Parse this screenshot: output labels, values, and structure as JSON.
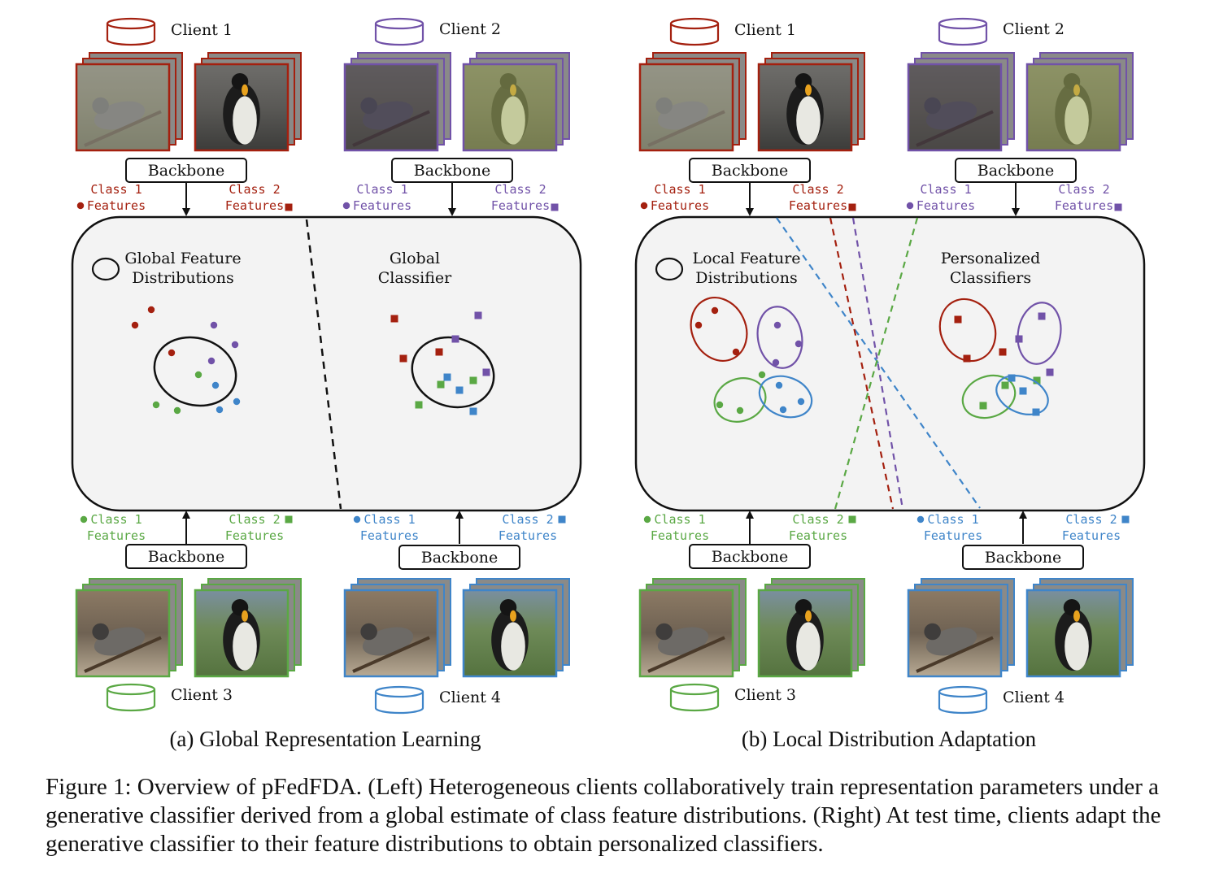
{
  "colors": {
    "red": "#a4200f",
    "purple": "#7152a8",
    "green": "#5aa844",
    "blue": "#3f85c9",
    "panel_fill": "#f3f3f3",
    "ink": "#111111"
  },
  "panels": [
    {
      "id": "a",
      "subcaption": "(a) Global Representation Learning",
      "region_left_title": [
        "Global Feature",
        "Distributions"
      ],
      "region_right_title": [
        "Global",
        "Classifier"
      ]
    },
    {
      "id": "b",
      "subcaption": "(b) Local Distribution Adaptation",
      "region_left_title": [
        "Local Feature",
        "Distributions"
      ],
      "region_right_title": [
        "Personalized",
        "Classifiers"
      ]
    }
  ],
  "clients": [
    {
      "name": "Client 1",
      "color": "red",
      "image": "bird"
    },
    {
      "name": "Client 2",
      "color": "purple",
      "image": "penguin"
    },
    {
      "name": "Client 3",
      "color": "green",
      "image": "bird"
    },
    {
      "name": "Client 4",
      "color": "blue",
      "image": "penguin"
    }
  ],
  "backbone_label": "Backbone",
  "class_feature_labels": {
    "class1": [
      "Class 1",
      "Features"
    ],
    "class2": [
      "Class 2",
      "Features"
    ]
  },
  "legend_marks": {
    "class1": "circle",
    "class2": "square"
  },
  "caption": {
    "label": "Figure 1:",
    "text": "Overview of pFedFDA. (Left) Heterogeneous clients collaboratively train representation parameters under a generative classifier derived from a global estimate of class feature distributions. (Right) At test time, clients adapt the generative classifier to their feature distributions to obtain personalized classifiers."
  }
}
